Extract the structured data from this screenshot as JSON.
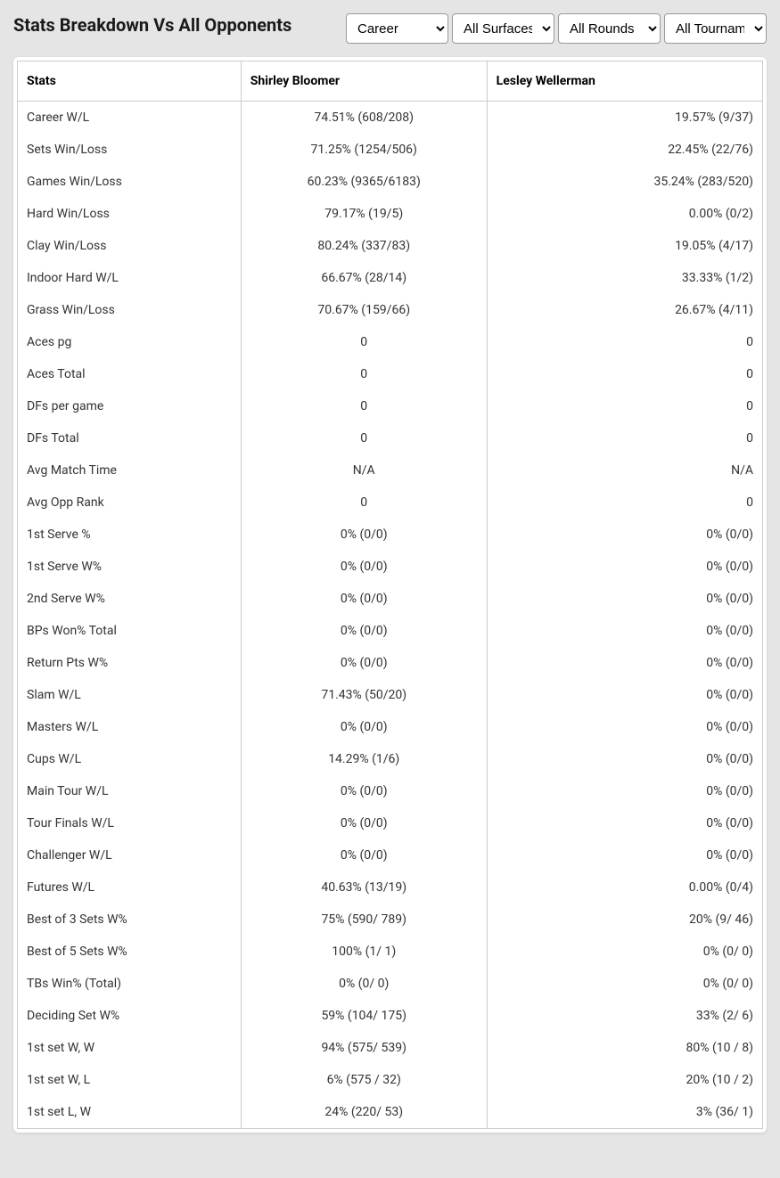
{
  "header": {
    "title": "Stats Breakdown Vs All Opponents",
    "filters": {
      "career": {
        "selected": "Career",
        "options": [
          "Career"
        ]
      },
      "surface": {
        "selected": "All Surfaces",
        "options": [
          "All Surfaces"
        ]
      },
      "rounds": {
        "selected": "All Rounds",
        "options": [
          "All Rounds"
        ]
      },
      "tournaments": {
        "selected": "All Tournaments",
        "options": [
          "All Tournaments"
        ]
      }
    }
  },
  "table": {
    "columns": [
      "Stats",
      "Shirley Bloomer",
      "Lesley Wellerman"
    ],
    "rows": [
      {
        "stat": "Career W/L",
        "p1": "74.51% (608/208)",
        "p2": "19.57% (9/37)"
      },
      {
        "stat": "Sets Win/Loss",
        "p1": "71.25% (1254/506)",
        "p2": "22.45% (22/76)"
      },
      {
        "stat": "Games Win/Loss",
        "p1": "60.23% (9365/6183)",
        "p2": "35.24% (283/520)"
      },
      {
        "stat": "Hard Win/Loss",
        "p1": "79.17% (19/5)",
        "p2": "0.00% (0/2)"
      },
      {
        "stat": "Clay Win/Loss",
        "p1": "80.24% (337/83)",
        "p2": "19.05% (4/17)"
      },
      {
        "stat": "Indoor Hard W/L",
        "p1": "66.67% (28/14)",
        "p2": "33.33% (1/2)"
      },
      {
        "stat": "Grass Win/Loss",
        "p1": "70.67% (159/66)",
        "p2": "26.67% (4/11)"
      },
      {
        "stat": "Aces pg",
        "p1": "0",
        "p2": "0"
      },
      {
        "stat": "Aces Total",
        "p1": "0",
        "p2": "0"
      },
      {
        "stat": "DFs per game",
        "p1": "0",
        "p2": "0"
      },
      {
        "stat": "DFs Total",
        "p1": "0",
        "p2": "0"
      },
      {
        "stat": "Avg Match Time",
        "p1": "N/A",
        "p2": "N/A"
      },
      {
        "stat": "Avg Opp Rank",
        "p1": "0",
        "p2": "0"
      },
      {
        "stat": "1st Serve %",
        "p1": "0% (0/0)",
        "p2": "0% (0/0)"
      },
      {
        "stat": "1st Serve W%",
        "p1": "0% (0/0)",
        "p2": "0% (0/0)"
      },
      {
        "stat": "2nd Serve W%",
        "p1": "0% (0/0)",
        "p2": "0% (0/0)"
      },
      {
        "stat": "BPs Won% Total",
        "p1": "0% (0/0)",
        "p2": "0% (0/0)"
      },
      {
        "stat": "Return Pts W%",
        "p1": "0% (0/0)",
        "p2": "0% (0/0)"
      },
      {
        "stat": "Slam W/L",
        "p1": "71.43% (50/20)",
        "p2": "0% (0/0)"
      },
      {
        "stat": "Masters W/L",
        "p1": "0% (0/0)",
        "p2": "0% (0/0)"
      },
      {
        "stat": "Cups W/L",
        "p1": "14.29% (1/6)",
        "p2": "0% (0/0)"
      },
      {
        "stat": "Main Tour W/L",
        "p1": "0% (0/0)",
        "p2": "0% (0/0)"
      },
      {
        "stat": "Tour Finals W/L",
        "p1": "0% (0/0)",
        "p2": "0% (0/0)"
      },
      {
        "stat": "Challenger W/L",
        "p1": "0% (0/0)",
        "p2": "0% (0/0)"
      },
      {
        "stat": "Futures W/L",
        "p1": "40.63% (13/19)",
        "p2": "0.00% (0/4)"
      },
      {
        "stat": "Best of 3 Sets W%",
        "p1": "75% (590/ 789)",
        "p2": "20% (9/ 46)"
      },
      {
        "stat": "Best of 5 Sets W%",
        "p1": "100% (1/ 1)",
        "p2": "0% (0/ 0)"
      },
      {
        "stat": "TBs Win% (Total)",
        "p1": "0% (0/ 0)",
        "p2": "0% (0/ 0)"
      },
      {
        "stat": "Deciding Set W%",
        "p1": "59% (104/ 175)",
        "p2": "33% (2/ 6)"
      },
      {
        "stat": "1st set W, W",
        "p1": "94% (575/ 539)",
        "p2": "80% (10 / 8)"
      },
      {
        "stat": "1st set W, L",
        "p1": "6% (575 / 32)",
        "p2": "20% (10 / 2)"
      },
      {
        "stat": "1st set L, W",
        "p1": "24% (220/ 53)",
        "p2": "3% (36/ 1)"
      }
    ]
  }
}
